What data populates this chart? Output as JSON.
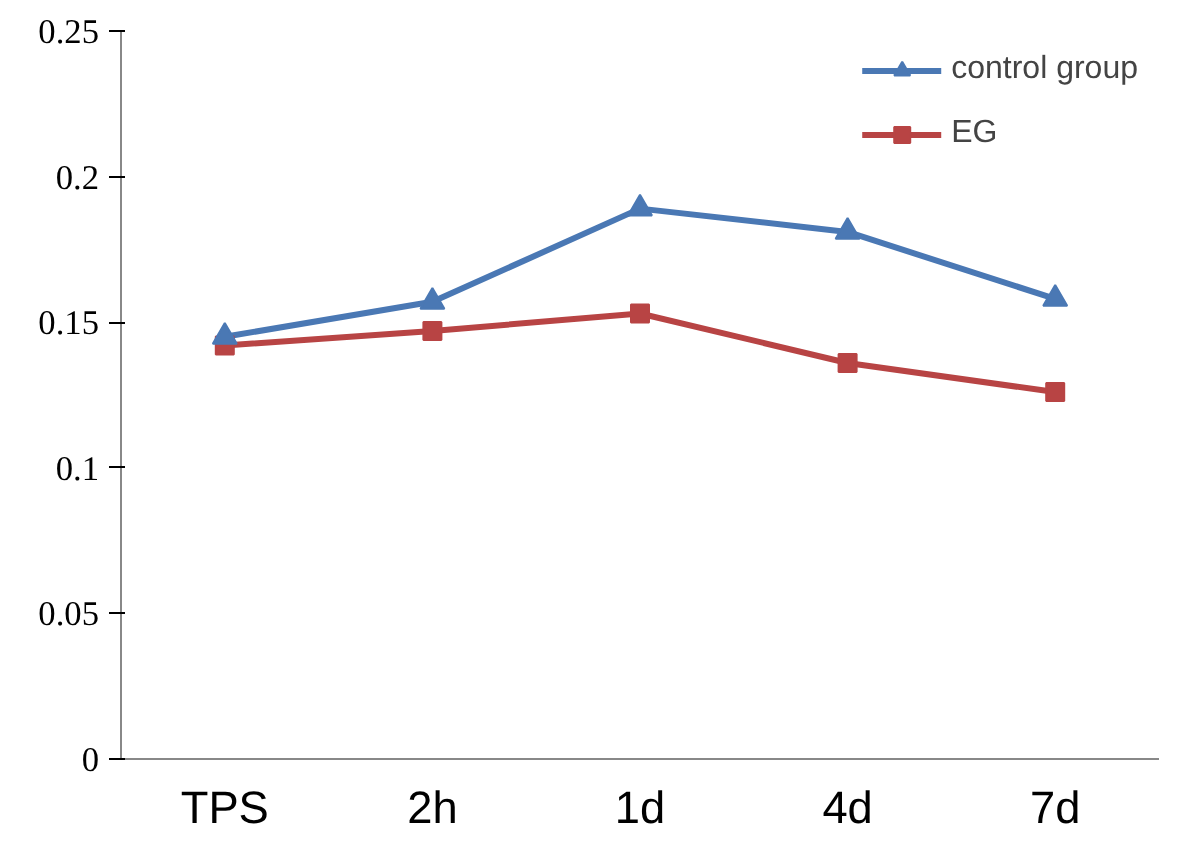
{
  "chart_data": {
    "type": "line",
    "categories": [
      "TPS",
      "2h",
      "1d",
      "4d",
      "7d"
    ],
    "series": [
      {
        "name": "control group",
        "color": "#4a78b4",
        "marker": "triangle",
        "values": [
          0.145,
          0.157,
          0.189,
          0.181,
          0.158
        ]
      },
      {
        "name": "EG",
        "color": "#b84444",
        "marker": "square",
        "values": [
          0.142,
          0.147,
          0.153,
          0.136,
          0.126
        ]
      }
    ],
    "ylim": [
      0,
      0.25
    ],
    "yticks": [
      0,
      0.05,
      0.1,
      0.15,
      0.2,
      0.25
    ],
    "grid": false,
    "legend": "top right"
  }
}
